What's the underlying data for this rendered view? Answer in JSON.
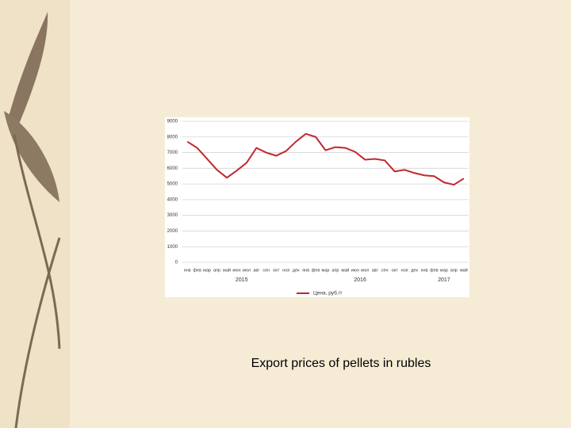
{
  "chart_data": {
    "type": "line",
    "categories": [
      "янв",
      "фев",
      "мар",
      "апр",
      "май",
      "июн",
      "июл",
      "авг",
      "сен",
      "окт",
      "ноя",
      "дек",
      "янв",
      "фев",
      "мар",
      "апр",
      "май",
      "июн",
      "июл",
      "авг",
      "сен",
      "окт",
      "ноя",
      "дек",
      "янв",
      "фев",
      "мар",
      "апр",
      "май"
    ],
    "group_labels": [
      "2015",
      "2016",
      "2017"
    ],
    "series": [
      {
        "name": "Цена, руб./т",
        "color": "#c0282d",
        "values": [
          7700,
          7300,
          6600,
          5900,
          5400,
          5850,
          6350,
          7300,
          7000,
          6800,
          7100,
          7700,
          8200,
          8000,
          7150,
          7350,
          7300,
          7050,
          6550,
          6600,
          6500,
          5800,
          5900,
          5700,
          5550,
          5500,
          5100,
          4950,
          5350
        ]
      }
    ],
    "ylim": [
      0,
      9000
    ],
    "yticks": [
      0,
      1000,
      2000,
      3000,
      4000,
      5000,
      6000,
      7000,
      8000,
      9000
    ],
    "grid": true,
    "legend": "bottom"
  },
  "caption": "Export prices of pellets in rubles"
}
